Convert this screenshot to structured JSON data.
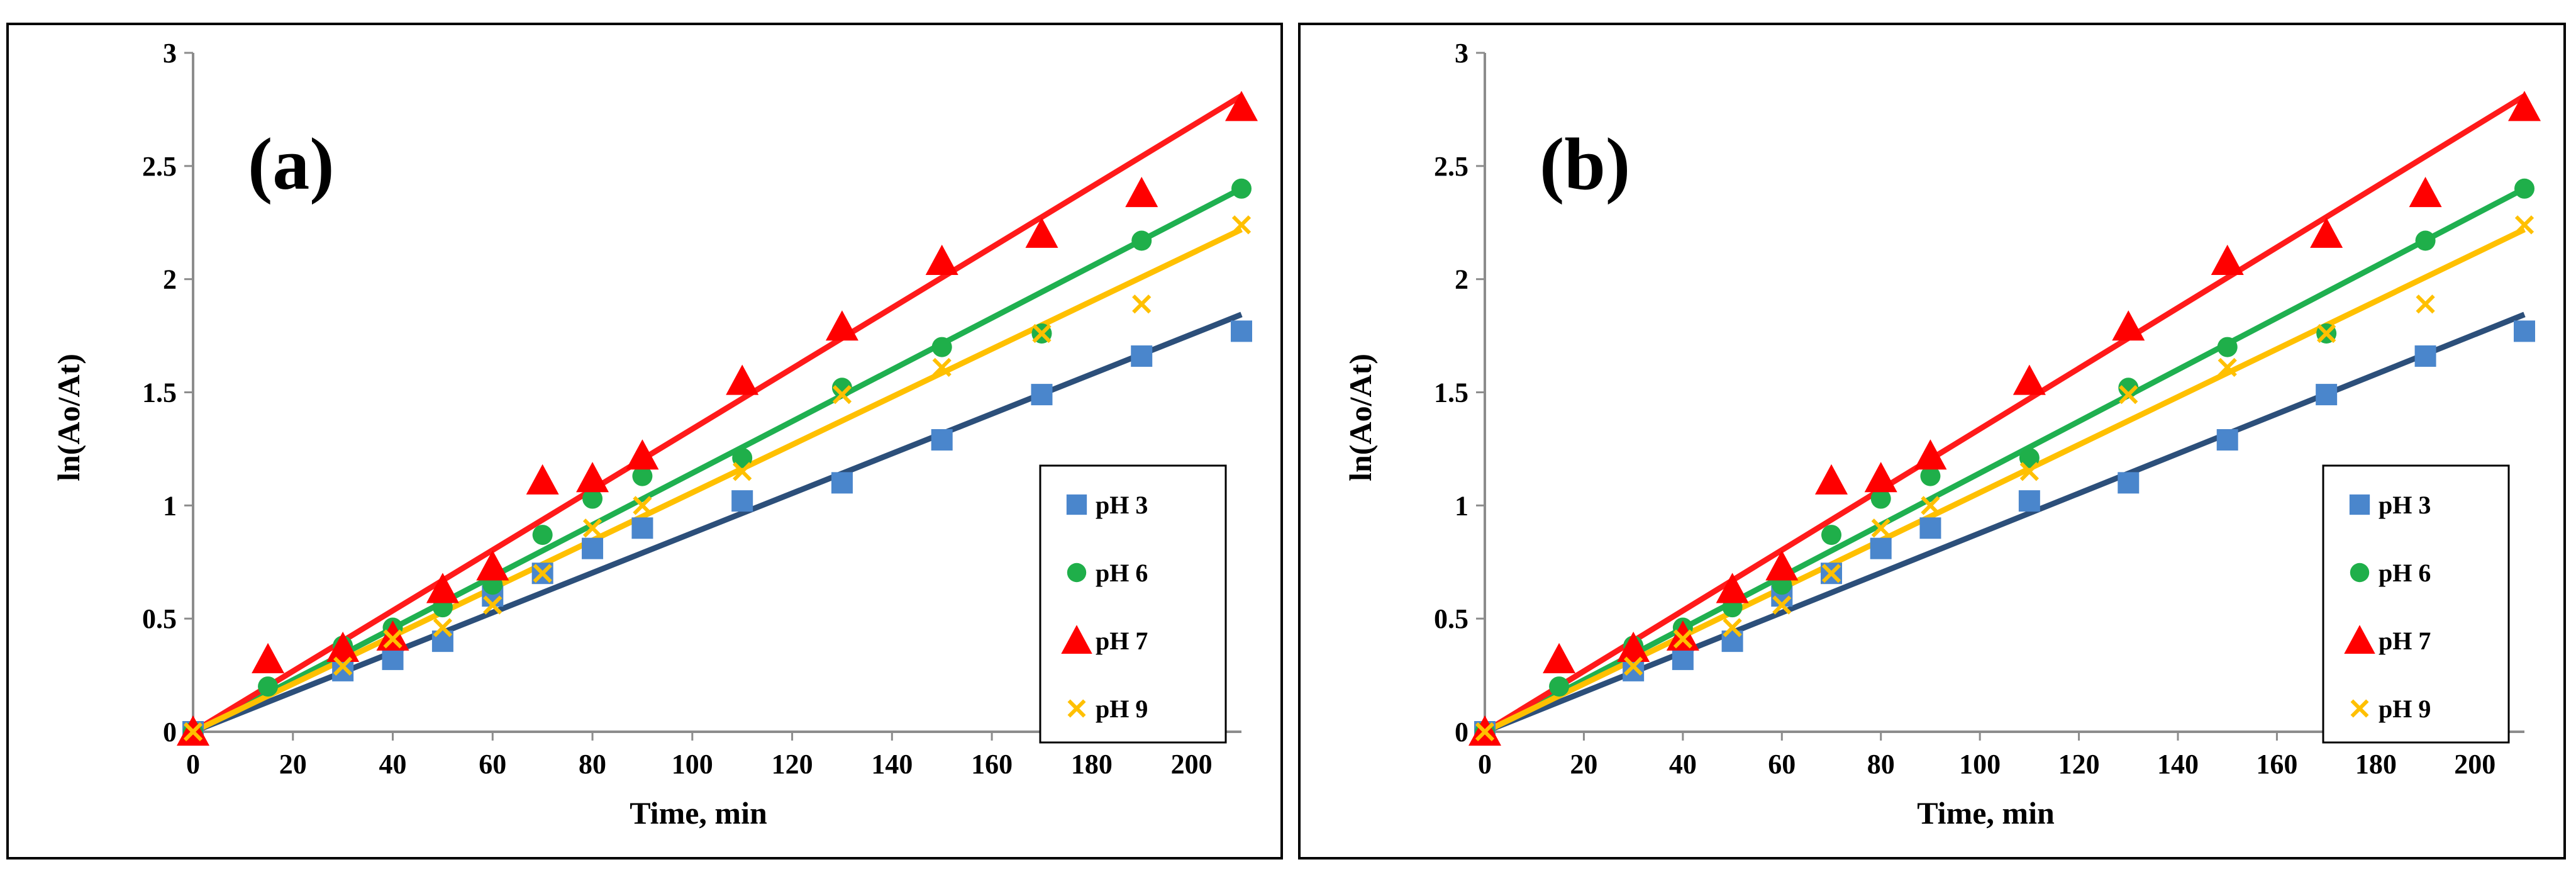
{
  "chart_data": [
    {
      "type": "scatter",
      "panel_label": "(a)",
      "xlabel": "Time, min",
      "ylabel": "ln(Ao/At)",
      "xlim": [
        0,
        210
      ],
      "ylim": [
        0,
        3
      ],
      "xticks": [
        "0",
        "20",
        "40",
        "60",
        "80",
        "100",
        "120",
        "140",
        "160",
        "180",
        "200"
      ],
      "yticks": [
        "0",
        "0.5",
        "1",
        "1.5",
        "2",
        "2.5",
        "3"
      ],
      "legend_position": "right",
      "series": [
        {
          "name": "pH 3",
          "marker": "square",
          "color": "#4a86cc",
          "fit_color": "#2c4f7a",
          "fit_slope": 0.00878,
          "x": [
            0,
            30,
            40,
            50,
            60,
            70,
            80,
            90,
            110,
            130,
            150,
            170,
            190,
            210
          ],
          "y": [
            0,
            0.27,
            0.32,
            0.4,
            0.6,
            0.7,
            0.81,
            0.9,
            1.02,
            1.1,
            1.29,
            1.49,
            1.66,
            1.77
          ]
        },
        {
          "name": "pH 6",
          "marker": "circle",
          "color": "#1faf4a",
          "fit_color": "#1fb050",
          "fit_slope": 0.01143,
          "x": [
            0,
            15,
            30,
            40,
            50,
            60,
            70,
            80,
            90,
            110,
            130,
            150,
            170,
            190,
            210
          ],
          "y": [
            0,
            0.2,
            0.38,
            0.46,
            0.55,
            0.65,
            0.87,
            1.03,
            1.13,
            1.21,
            1.52,
            1.7,
            1.76,
            2.17,
            2.4
          ]
        },
        {
          "name": "pH 7",
          "marker": "triangle",
          "color": "#ff0000",
          "fit_color": "#ff1a1a",
          "fit_slope": 0.01338,
          "x": [
            0,
            15,
            30,
            40,
            50,
            60,
            70,
            80,
            90,
            110,
            130,
            150,
            170,
            190,
            210
          ],
          "y": [
            0,
            0.32,
            0.37,
            0.42,
            0.63,
            0.73,
            1.11,
            1.12,
            1.22,
            1.55,
            1.79,
            2.08,
            2.2,
            2.38,
            2.76
          ]
        },
        {
          "name": "pH 9",
          "marker": "x",
          "color": "#ffc000",
          "fit_color": "#ffc000",
          "fit_slope": 0.01057,
          "x": [
            0,
            30,
            40,
            50,
            60,
            70,
            80,
            90,
            110,
            130,
            150,
            170,
            190,
            210
          ],
          "y": [
            0,
            0.29,
            0.41,
            0.46,
            0.56,
            0.7,
            0.9,
            1.0,
            1.15,
            1.49,
            1.61,
            1.76,
            1.89,
            2.24
          ]
        }
      ]
    },
    {
      "type": "scatter",
      "panel_label": "(b)",
      "xlabel": "Time, min",
      "ylabel": "ln(Ao/At)",
      "xlim": [
        0,
        210
      ],
      "ylim": [
        0,
        3
      ],
      "xticks": [
        "0",
        "20",
        "40",
        "60",
        "80",
        "100",
        "120",
        "140",
        "160",
        "180",
        "200"
      ],
      "yticks": [
        "0",
        "0.5",
        "1",
        "1.5",
        "2",
        "2.5",
        "3"
      ],
      "legend_position": "right",
      "series": [
        {
          "name": "pH 3",
          "marker": "square",
          "color": "#4a86cc",
          "fit_color": "#2c4f7a",
          "fit_slope": 0.00878,
          "x": [
            0,
            30,
            40,
            50,
            60,
            70,
            80,
            90,
            110,
            130,
            150,
            170,
            190,
            210
          ],
          "y": [
            0,
            0.27,
            0.32,
            0.4,
            0.6,
            0.7,
            0.81,
            0.9,
            1.02,
            1.1,
            1.29,
            1.49,
            1.66,
            1.77
          ]
        },
        {
          "name": "pH 6",
          "marker": "circle",
          "color": "#1faf4a",
          "fit_color": "#1fb050",
          "fit_slope": 0.01143,
          "x": [
            0,
            15,
            30,
            40,
            50,
            60,
            70,
            80,
            90,
            110,
            130,
            150,
            170,
            190,
            210
          ],
          "y": [
            0,
            0.2,
            0.38,
            0.46,
            0.55,
            0.65,
            0.87,
            1.03,
            1.13,
            1.21,
            1.52,
            1.7,
            1.76,
            2.17,
            2.4
          ]
        },
        {
          "name": "pH 7",
          "marker": "triangle",
          "color": "#ff0000",
          "fit_color": "#ff1a1a",
          "fit_slope": 0.01338,
          "x": [
            0,
            15,
            30,
            40,
            50,
            60,
            70,
            80,
            90,
            110,
            130,
            150,
            170,
            190,
            210
          ],
          "y": [
            0,
            0.32,
            0.37,
            0.42,
            0.63,
            0.73,
            1.11,
            1.12,
            1.22,
            1.55,
            1.79,
            2.08,
            2.2,
            2.38,
            2.76
          ]
        },
        {
          "name": "pH 9",
          "marker": "x",
          "color": "#ffc000",
          "fit_color": "#ffc000",
          "fit_slope": 0.01057,
          "x": [
            0,
            30,
            40,
            50,
            60,
            70,
            80,
            90,
            110,
            130,
            150,
            170,
            190,
            210
          ],
          "y": [
            0,
            0.29,
            0.41,
            0.46,
            0.56,
            0.7,
            0.9,
            1.0,
            1.15,
            1.49,
            1.61,
            1.76,
            1.89,
            2.24
          ]
        }
      ]
    }
  ]
}
